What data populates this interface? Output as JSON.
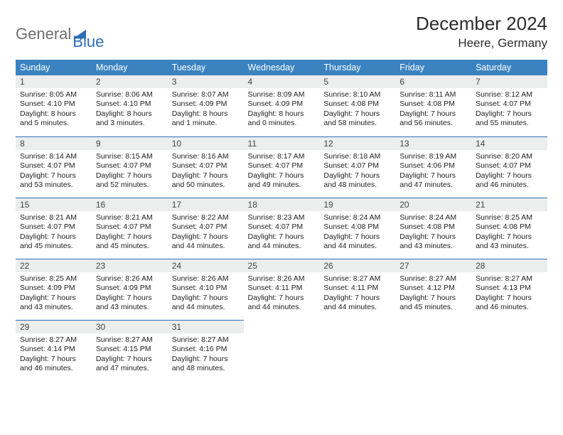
{
  "logo": {
    "main": "General",
    "sub": "Blue"
  },
  "title": "December 2024",
  "location": "Heere, Germany",
  "colors": {
    "header_bg": "#3b83c0",
    "header_fg": "#ffffff",
    "daynum_bg": "#eceded",
    "rule": "#2b6fb5",
    "logo_gray": "#6d6e71",
    "logo_blue": "#2b6fb5"
  },
  "weekdays": [
    "Sunday",
    "Monday",
    "Tuesday",
    "Wednesday",
    "Thursday",
    "Friday",
    "Saturday"
  ],
  "weeks": [
    [
      {
        "n": "1",
        "sr": "Sunrise: 8:05 AM",
        "ss": "Sunset: 4:10 PM",
        "dl1": "Daylight: 8 hours",
        "dl2": "and 5 minutes."
      },
      {
        "n": "2",
        "sr": "Sunrise: 8:06 AM",
        "ss": "Sunset: 4:10 PM",
        "dl1": "Daylight: 8 hours",
        "dl2": "and 3 minutes."
      },
      {
        "n": "3",
        "sr": "Sunrise: 8:07 AM",
        "ss": "Sunset: 4:09 PM",
        "dl1": "Daylight: 8 hours",
        "dl2": "and 1 minute."
      },
      {
        "n": "4",
        "sr": "Sunrise: 8:09 AM",
        "ss": "Sunset: 4:09 PM",
        "dl1": "Daylight: 8 hours",
        "dl2": "and 0 minutes."
      },
      {
        "n": "5",
        "sr": "Sunrise: 8:10 AM",
        "ss": "Sunset: 4:08 PM",
        "dl1": "Daylight: 7 hours",
        "dl2": "and 58 minutes."
      },
      {
        "n": "6",
        "sr": "Sunrise: 8:11 AM",
        "ss": "Sunset: 4:08 PM",
        "dl1": "Daylight: 7 hours",
        "dl2": "and 56 minutes."
      },
      {
        "n": "7",
        "sr": "Sunrise: 8:12 AM",
        "ss": "Sunset: 4:07 PM",
        "dl1": "Daylight: 7 hours",
        "dl2": "and 55 minutes."
      }
    ],
    [
      {
        "n": "8",
        "sr": "Sunrise: 8:14 AM",
        "ss": "Sunset: 4:07 PM",
        "dl1": "Daylight: 7 hours",
        "dl2": "and 53 minutes."
      },
      {
        "n": "9",
        "sr": "Sunrise: 8:15 AM",
        "ss": "Sunset: 4:07 PM",
        "dl1": "Daylight: 7 hours",
        "dl2": "and 52 minutes."
      },
      {
        "n": "10",
        "sr": "Sunrise: 8:16 AM",
        "ss": "Sunset: 4:07 PM",
        "dl1": "Daylight: 7 hours",
        "dl2": "and 50 minutes."
      },
      {
        "n": "11",
        "sr": "Sunrise: 8:17 AM",
        "ss": "Sunset: 4:07 PM",
        "dl1": "Daylight: 7 hours",
        "dl2": "and 49 minutes."
      },
      {
        "n": "12",
        "sr": "Sunrise: 8:18 AM",
        "ss": "Sunset: 4:07 PM",
        "dl1": "Daylight: 7 hours",
        "dl2": "and 48 minutes."
      },
      {
        "n": "13",
        "sr": "Sunrise: 8:19 AM",
        "ss": "Sunset: 4:06 PM",
        "dl1": "Daylight: 7 hours",
        "dl2": "and 47 minutes."
      },
      {
        "n": "14",
        "sr": "Sunrise: 8:20 AM",
        "ss": "Sunset: 4:07 PM",
        "dl1": "Daylight: 7 hours",
        "dl2": "and 46 minutes."
      }
    ],
    [
      {
        "n": "15",
        "sr": "Sunrise: 8:21 AM",
        "ss": "Sunset: 4:07 PM",
        "dl1": "Daylight: 7 hours",
        "dl2": "and 45 minutes."
      },
      {
        "n": "16",
        "sr": "Sunrise: 8:21 AM",
        "ss": "Sunset: 4:07 PM",
        "dl1": "Daylight: 7 hours",
        "dl2": "and 45 minutes."
      },
      {
        "n": "17",
        "sr": "Sunrise: 8:22 AM",
        "ss": "Sunset: 4:07 PM",
        "dl1": "Daylight: 7 hours",
        "dl2": "and 44 minutes."
      },
      {
        "n": "18",
        "sr": "Sunrise: 8:23 AM",
        "ss": "Sunset: 4:07 PM",
        "dl1": "Daylight: 7 hours",
        "dl2": "and 44 minutes."
      },
      {
        "n": "19",
        "sr": "Sunrise: 8:24 AM",
        "ss": "Sunset: 4:08 PM",
        "dl1": "Daylight: 7 hours",
        "dl2": "and 44 minutes."
      },
      {
        "n": "20",
        "sr": "Sunrise: 8:24 AM",
        "ss": "Sunset: 4:08 PM",
        "dl1": "Daylight: 7 hours",
        "dl2": "and 43 minutes."
      },
      {
        "n": "21",
        "sr": "Sunrise: 8:25 AM",
        "ss": "Sunset: 4:08 PM",
        "dl1": "Daylight: 7 hours",
        "dl2": "and 43 minutes."
      }
    ],
    [
      {
        "n": "22",
        "sr": "Sunrise: 8:25 AM",
        "ss": "Sunset: 4:09 PM",
        "dl1": "Daylight: 7 hours",
        "dl2": "and 43 minutes."
      },
      {
        "n": "23",
        "sr": "Sunrise: 8:26 AM",
        "ss": "Sunset: 4:09 PM",
        "dl1": "Daylight: 7 hours",
        "dl2": "and 43 minutes."
      },
      {
        "n": "24",
        "sr": "Sunrise: 8:26 AM",
        "ss": "Sunset: 4:10 PM",
        "dl1": "Daylight: 7 hours",
        "dl2": "and 44 minutes."
      },
      {
        "n": "25",
        "sr": "Sunrise: 8:26 AM",
        "ss": "Sunset: 4:11 PM",
        "dl1": "Daylight: 7 hours",
        "dl2": "and 44 minutes."
      },
      {
        "n": "26",
        "sr": "Sunrise: 8:27 AM",
        "ss": "Sunset: 4:11 PM",
        "dl1": "Daylight: 7 hours",
        "dl2": "and 44 minutes."
      },
      {
        "n": "27",
        "sr": "Sunrise: 8:27 AM",
        "ss": "Sunset: 4:12 PM",
        "dl1": "Daylight: 7 hours",
        "dl2": "and 45 minutes."
      },
      {
        "n": "28",
        "sr": "Sunrise: 8:27 AM",
        "ss": "Sunset: 4:13 PM",
        "dl1": "Daylight: 7 hours",
        "dl2": "and 46 minutes."
      }
    ],
    [
      {
        "n": "29",
        "sr": "Sunrise: 8:27 AM",
        "ss": "Sunset: 4:14 PM",
        "dl1": "Daylight: 7 hours",
        "dl2": "and 46 minutes."
      },
      {
        "n": "30",
        "sr": "Sunrise: 8:27 AM",
        "ss": "Sunset: 4:15 PM",
        "dl1": "Daylight: 7 hours",
        "dl2": "and 47 minutes."
      },
      {
        "n": "31",
        "sr": "Sunrise: 8:27 AM",
        "ss": "Sunset: 4:16 PM",
        "dl1": "Daylight: 7 hours",
        "dl2": "and 48 minutes."
      },
      null,
      null,
      null,
      null
    ]
  ]
}
